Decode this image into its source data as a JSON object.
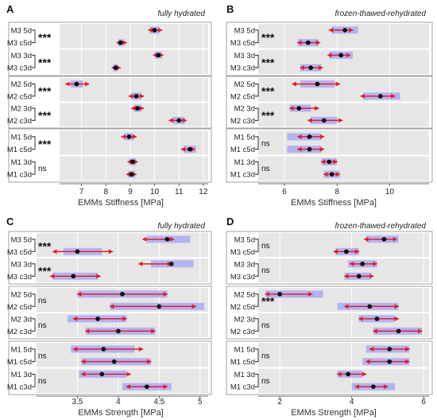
{
  "chart_data": [
    {
      "type": "forest",
      "panel": "A",
      "title": "fully hydrated",
      "xlabel": "EMMs  Stiffness  [MPa]",
      "xlim": [
        6.1,
        12.2
      ],
      "xticks": [
        7,
        8,
        9,
        10,
        11,
        12
      ],
      "blocks": [
        {
          "rows": [
            {
              "label": "M3 5d",
              "mean": 10.0,
              "lo": 9.8,
              "hi": 10.2,
              "err_lo": 9.75,
              "err_hi": 10.3
            },
            {
              "label": "M3 c5d",
              "mean": 8.6,
              "lo": 8.5,
              "hi": 8.75,
              "err_lo": 8.45,
              "err_hi": 8.85
            },
            {
              "label": "M3 3d",
              "mean": 10.15,
              "lo": 10.0,
              "hi": 10.3,
              "err_lo": 9.95,
              "err_hi": 10.35
            },
            {
              "label": "M3 c3d",
              "mean": 8.4,
              "lo": 8.3,
              "hi": 8.5,
              "err_lo": 8.25,
              "err_hi": 8.6
            }
          ],
          "sig": [
            "***",
            "***"
          ]
        },
        {
          "rows": [
            {
              "label": "M2 5d",
              "mean": 6.8,
              "lo": 6.55,
              "hi": 7.05,
              "err_lo": 6.35,
              "err_hi": 7.3
            },
            {
              "label": "M2 c5d",
              "mean": 9.25,
              "lo": 9.05,
              "hi": 9.45,
              "err_lo": 8.95,
              "err_hi": 9.55
            },
            {
              "label": "M2 3d",
              "mean": 9.3,
              "lo": 9.15,
              "hi": 9.45,
              "err_lo": 9.05,
              "err_hi": 9.55
            },
            {
              "label": "M2 c3d",
              "mean": 11.0,
              "lo": 10.75,
              "hi": 11.25,
              "err_lo": 10.6,
              "err_hi": 11.3
            }
          ],
          "sig": [
            "***",
            "***"
          ]
        },
        {
          "rows": [
            {
              "label": "M1 5d",
              "mean": 8.95,
              "lo": 8.75,
              "hi": 9.15,
              "err_lo": 8.65,
              "err_hi": 9.25
            },
            {
              "label": "M1 c5d",
              "mean": 11.45,
              "lo": 11.2,
              "hi": 11.7,
              "err_lo": 11.1,
              "err_hi": 11.65
            },
            {
              "label": "M1 3d",
              "mean": 9.1,
              "lo": 8.95,
              "hi": 9.25,
              "err_lo": 8.9,
              "err_hi": 9.3
            },
            {
              "label": "M1 c3d",
              "mean": 9.05,
              "lo": 8.9,
              "hi": 9.2,
              "err_lo": 8.85,
              "err_hi": 9.25
            }
          ],
          "sig": [
            "***",
            "ns"
          ]
        }
      ]
    },
    {
      "type": "forest",
      "panel": "B",
      "title": "frozen-thawed-rehydrated",
      "xlabel": "EMMs  Stiffness  [MPa]",
      "xlim": [
        5.0,
        11.5
      ],
      "xticks": [
        6,
        8,
        10
      ],
      "blocks": [
        {
          "rows": [
            {
              "label": "M3 5d",
              "mean": 8.3,
              "lo": 7.8,
              "hi": 8.8,
              "err_lo": 7.7,
              "err_hi": 8.6
            },
            {
              "label": "M3 c5d",
              "mean": 6.9,
              "lo": 6.5,
              "hi": 7.3,
              "err_lo": 6.5,
              "err_hi": 7.35
            },
            {
              "label": "M3 3d",
              "mean": 8.15,
              "lo": 7.7,
              "hi": 8.6,
              "err_lo": 7.65,
              "err_hi": 8.5
            },
            {
              "label": "M3 c3d",
              "mean": 7.0,
              "lo": 6.6,
              "hi": 7.4,
              "err_lo": 6.6,
              "err_hi": 7.45
            }
          ],
          "sig": [
            "***",
            "***"
          ]
        },
        {
          "rows": [
            {
              "label": "M2 5d",
              "mean": 7.25,
              "lo": 6.6,
              "hi": 7.9,
              "err_lo": 6.3,
              "err_hi": 8.1
            },
            {
              "label": "M2 c5d",
              "mean": 9.65,
              "lo": 9.0,
              "hi": 10.4,
              "err_lo": 8.9,
              "err_hi": 10.2
            },
            {
              "label": "M2 3d",
              "mean": 6.55,
              "lo": 6.2,
              "hi": 7.0,
              "err_lo": 6.2,
              "err_hi": 7.3
            },
            {
              "label": "M2 c3d",
              "mean": 7.5,
              "lo": 7.0,
              "hi": 8.0,
              "err_lo": 6.9,
              "err_hi": 8.2
            }
          ],
          "sig": [
            "***",
            "***"
          ]
        },
        {
          "rows": [
            {
              "label": "M1 5d",
              "mean": 6.95,
              "lo": 6.1,
              "hi": 7.4,
              "err_lo": 6.5,
              "err_hi": 7.5
            },
            {
              "label": "M1 c5d",
              "mean": 6.95,
              "lo": 6.1,
              "hi": 7.4,
              "err_lo": 6.5,
              "err_hi": 7.5
            },
            {
              "label": "M1 3d",
              "mean": 7.7,
              "lo": 7.4,
              "hi": 8.0,
              "err_lo": 7.4,
              "err_hi": 8.0
            },
            {
              "label": "M1 c3d",
              "mean": 7.8,
              "lo": 7.5,
              "hi": 8.1,
              "err_lo": 7.5,
              "err_hi": 8.1
            }
          ],
          "sig": [
            "ns",
            "ns"
          ]
        }
      ]
    },
    {
      "type": "forest",
      "panel": "C",
      "title": "fully hydrated",
      "xlabel": "EMMs  Strength  [MPa]",
      "xlim": [
        3.0,
        5.1
      ],
      "xticks": [
        3.5,
        4.0,
        4.5,
        5.0
      ],
      "blocks": [
        {
          "rows": [
            {
              "label": "M3 5d",
              "mean": 4.6,
              "lo": 4.35,
              "hi": 4.88,
              "err_lo": 4.3,
              "err_hi": 4.68
            },
            {
              "label": "M3 c5d",
              "mean": 3.5,
              "lo": 3.33,
              "hi": 3.8,
              "err_lo": 3.2,
              "err_hi": 3.93
            },
            {
              "label": "M3 3d",
              "mean": 4.65,
              "lo": 4.4,
              "hi": 4.92,
              "err_lo": 4.25,
              "err_hi": 4.65
            },
            {
              "label": "M3 c3d",
              "mean": 3.45,
              "lo": 3.2,
              "hi": 3.75,
              "err_lo": 3.17,
              "err_hi": 3.78
            }
          ],
          "sig": [
            "***",
            "***"
          ]
        },
        {
          "rows": [
            {
              "label": "M2 5d",
              "mean": 4.05,
              "lo": 3.5,
              "hi": 4.6,
              "err_lo": 3.5,
              "err_hi": 4.6
            },
            {
              "label": "M2 c5d",
              "mean": 4.5,
              "lo": 3.9,
              "hi": 5.05,
              "err_lo": 3.9,
              "err_hi": 4.95
            },
            {
              "label": "M2 3d",
              "mean": 3.75,
              "lo": 3.38,
              "hi": 4.1,
              "err_lo": 3.45,
              "err_hi": 4.1
            },
            {
              "label": "M2 c3d",
              "mean": 4.0,
              "lo": 3.6,
              "hi": 4.45,
              "err_lo": 3.6,
              "err_hi": 4.45
            }
          ],
          "sig": [
            "ns",
            "ns"
          ]
        },
        {
          "rows": [
            {
              "label": "M1 5d",
              "mean": 3.82,
              "lo": 3.42,
              "hi": 4.2,
              "err_lo": 3.45,
              "err_hi": 4.3
            },
            {
              "label": "M1 c5d",
              "mean": 3.95,
              "lo": 3.55,
              "hi": 4.4,
              "err_lo": 3.55,
              "err_hi": 4.4
            },
            {
              "label": "M1 3d",
              "mean": 3.8,
              "lo": 3.52,
              "hi": 4.1,
              "err_lo": 3.55,
              "err_hi": 4.15
            },
            {
              "label": "M1 c3d",
              "mean": 4.35,
              "lo": 4.05,
              "hi": 4.65,
              "err_lo": 4.1,
              "err_hi": 4.6
            }
          ],
          "sig": [
            "ns",
            "ns"
          ]
        }
      ]
    },
    {
      "type": "forest",
      "panel": "D",
      "title": "frozen-thawed-rehydrated",
      "xlabel": "EMMs  Strength  [MPa]",
      "xlim": [
        1.4,
        6.15
      ],
      "xticks": [
        2,
        4,
        6
      ],
      "blocks": [
        {
          "rows": [
            {
              "label": "M3 5d",
              "mean": 4.9,
              "lo": 4.4,
              "hi": 5.3,
              "err_lo": 4.35,
              "err_hi": 5.25
            },
            {
              "label": "M3 c5d",
              "mean": 3.85,
              "lo": 3.55,
              "hi": 4.2,
              "err_lo": 3.5,
              "err_hi": 4.2
            },
            {
              "label": "M3 3d",
              "mean": 4.3,
              "lo": 3.9,
              "hi": 4.7,
              "err_lo": 3.95,
              "err_hi": 4.7
            },
            {
              "label": "M3 c3d",
              "mean": 4.2,
              "lo": 3.8,
              "hi": 4.55,
              "err_lo": 3.8,
              "err_hi": 4.6
            }
          ],
          "sig": [
            "ns",
            "ns"
          ]
        },
        {
          "rows": [
            {
              "label": "M2 5d",
              "mean": 2.0,
              "lo": 1.6,
              "hi": 3.2,
              "err_lo": 1.6,
              "err_hi": 2.9
            },
            {
              "label": "M2 c5d",
              "mean": 4.5,
              "lo": 3.6,
              "hi": 5.3,
              "err_lo": 3.8,
              "err_hi": 5.3
            },
            {
              "label": "M2 3d",
              "mean": 4.7,
              "lo": 4.2,
              "hi": 5.2,
              "err_lo": 4.2,
              "err_hi": 5.3
            },
            {
              "label": "M2 c3d",
              "mean": 5.3,
              "lo": 4.6,
              "hi": 5.95,
              "err_lo": 4.6,
              "err_hi": 5.95
            }
          ],
          "sig": [
            "***",
            "ns"
          ]
        },
        {
          "rows": [
            {
              "label": "M1 5d",
              "mean": 5.05,
              "lo": 4.4,
              "hi": 5.6,
              "err_lo": 4.5,
              "err_hi": 5.6
            },
            {
              "label": "M1 c5d",
              "mean": 5.05,
              "lo": 4.3,
              "hi": 5.6,
              "err_lo": 4.4,
              "err_hi": 5.6
            },
            {
              "label": "M1 3d",
              "mean": 3.9,
              "lo": 3.6,
              "hi": 4.3,
              "err_lo": 3.6,
              "err_hi": 4.4
            },
            {
              "label": "M1 c3d",
              "mean": 4.6,
              "lo": 4.0,
              "hi": 5.2,
              "err_lo": 4.1,
              "err_hi": 5.0
            }
          ],
          "sig": [
            "ns",
            "ns"
          ]
        }
      ]
    }
  ],
  "colors": {
    "panel_bg": "#e6e6e6",
    "grid": "#ffffff",
    "ci_box": "#a9a9f2",
    "error_arrow": "#e0202a",
    "mean_dot": "#000000",
    "frame": "#333333"
  }
}
